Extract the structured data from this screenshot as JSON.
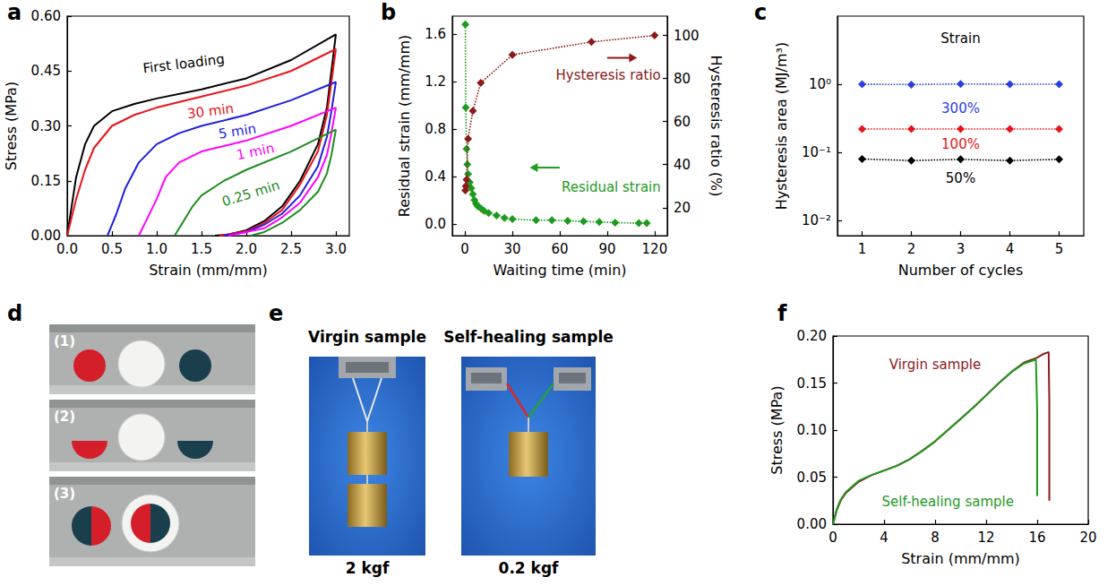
{
  "chart_data": [
    {
      "panel": "a",
      "type": "line",
      "xlabel": "Strain (mm/mm)",
      "ylabel": "Stress (MPa)",
      "xlim": [
        0,
        3.15
      ],
      "xticks": [
        {
          "value": 0,
          "label": "0.0"
        },
        0.5,
        {
          "value": 1,
          "label": "1.0"
        },
        1.5,
        {
          "value": 2,
          "label": "2.0"
        },
        2.5,
        {
          "value": 3,
          "label": "3.0"
        }
      ],
      "ylim": [
        0,
        0.6
      ],
      "yticks": [
        {
          "value": 0,
          "label": "0.00"
        },
        0.15,
        {
          "value": 0.3,
          "label": "0.30"
        },
        0.45,
        {
          "value": 0.6,
          "label": "0.60"
        }
      ],
      "grid": false,
      "series": [
        {
          "name": "First loading",
          "color": "#000000",
          "x": [
            0,
            0.05,
            0.1,
            0.2,
            0.3,
            0.5,
            0.75,
            1.0,
            1.5,
            2.0,
            2.5,
            3.0,
            2.95,
            2.9,
            2.8,
            2.6,
            2.4,
            2.2,
            2.0,
            1.8,
            1.65
          ],
          "values": [
            0,
            0.08,
            0.16,
            0.25,
            0.3,
            0.34,
            0.36,
            0.375,
            0.4,
            0.43,
            0.48,
            0.55,
            0.45,
            0.35,
            0.25,
            0.15,
            0.08,
            0.04,
            0.015,
            0.003,
            0
          ]
        },
        {
          "name": "30 min",
          "color": "#e8141b",
          "x": [
            0,
            0.1,
            0.2,
            0.3,
            0.5,
            0.75,
            1.0,
            1.5,
            2.0,
            2.5,
            3.0,
            2.95,
            2.9,
            2.8,
            2.6,
            2.4,
            2.2,
            2.0,
            1.7
          ],
          "values": [
            0,
            0.1,
            0.18,
            0.24,
            0.3,
            0.33,
            0.35,
            0.38,
            0.41,
            0.45,
            0.51,
            0.42,
            0.33,
            0.23,
            0.14,
            0.07,
            0.035,
            0.012,
            0
          ]
        },
        {
          "name": "5 min",
          "color": "#1f1fe0",
          "x": [
            0.45,
            0.55,
            0.65,
            0.8,
            1.0,
            1.25,
            1.5,
            2.0,
            2.5,
            3.0,
            2.95,
            2.9,
            2.8,
            2.6,
            2.4,
            2.2,
            2.0,
            1.75
          ],
          "values": [
            0,
            0.06,
            0.13,
            0.2,
            0.25,
            0.28,
            0.3,
            0.33,
            0.37,
            0.42,
            0.34,
            0.27,
            0.19,
            0.11,
            0.06,
            0.03,
            0.01,
            0
          ]
        },
        {
          "name": "1 min",
          "color": "#ff00ff",
          "x": [
            0.8,
            0.9,
            1.0,
            1.1,
            1.25,
            1.5,
            2.0,
            2.5,
            3.0,
            2.95,
            2.9,
            2.8,
            2.6,
            2.4,
            2.2,
            1.8
          ],
          "values": [
            0,
            0.05,
            0.1,
            0.16,
            0.2,
            0.23,
            0.26,
            0.3,
            0.35,
            0.28,
            0.22,
            0.16,
            0.09,
            0.05,
            0.02,
            0
          ]
        },
        {
          "name": "0.25 min",
          "color": "#1e8c1e",
          "x": [
            1.2,
            1.3,
            1.4,
            1.5,
            1.75,
            2.0,
            2.5,
            3.0,
            2.95,
            2.9,
            2.8,
            2.6,
            2.4,
            2.2,
            2.05
          ],
          "values": [
            0,
            0.04,
            0.08,
            0.11,
            0.15,
            0.18,
            0.23,
            0.29,
            0.22,
            0.17,
            0.12,
            0.07,
            0.035,
            0.01,
            0
          ]
        }
      ]
    },
    {
      "panel": "b",
      "type": "line",
      "xlabel": "Waiting time (min)",
      "ylabel": "Residual strain (mm/mm)",
      "y2label": "Hysteresis ratio (%)",
      "xlim": [
        -8,
        128
      ],
      "xticks": [
        0,
        30,
        60,
        90,
        120
      ],
      "ylim": [
        -0.1,
        1.75
      ],
      "yticks": [
        {
          "value": 0,
          "label": "0.0"
        },
        0.4,
        0.8,
        1.2,
        1.6
      ],
      "y2lim": [
        7,
        109
      ],
      "y2ticks": [
        20,
        40,
        60,
        80,
        100
      ],
      "grid": false,
      "marker": "diamond",
      "line_style": "dotted",
      "series": [
        {
          "name": "Residual strain",
          "color": "#1e9a1e",
          "x": [
            0.25,
            0.5,
            1,
            1.5,
            2,
            3,
            4,
            5,
            6,
            7,
            8,
            10,
            12,
            15,
            20,
            25,
            30,
            45,
            55,
            65,
            75,
            85,
            95,
            110,
            115
          ],
          "values": [
            1.68,
            0.98,
            0.63,
            0.5,
            0.42,
            0.35,
            0.3,
            0.25,
            0.2,
            0.17,
            0.15,
            0.13,
            0.11,
            0.09,
            0.07,
            0.05,
            0.04,
            0.03,
            0.03,
            0.025,
            0.02,
            0.015,
            0.01,
            0.005,
            0.005
          ]
        },
        {
          "name": "Hysteresis ratio",
          "color": "#8b1a1a",
          "axis": "y2",
          "x": [
            0.25,
            0.5,
            1,
            2,
            5,
            10,
            30,
            80,
            120
          ],
          "values": [
            28,
            30,
            33,
            52,
            65,
            78,
            91,
            97,
            100
          ]
        }
      ]
    },
    {
      "panel": "c",
      "type": "line",
      "xlabel": "Number of cycles",
      "ylabel": "Hysteresis area (MJ/m³)",
      "log": "y",
      "xlim": [
        0.5,
        5.5
      ],
      "xticks": [
        1,
        2,
        3,
        4,
        5
      ],
      "ylim": [
        0.006,
        10
      ],
      "yticks": [
        {
          "value": 0.01,
          "label": "10⁻²"
        },
        {
          "value": 0.1,
          "label": "10⁻¹"
        },
        {
          "value": 1,
          "label": "10⁰"
        }
      ],
      "grid": false,
      "marker": "diamond",
      "line_style": "dotted",
      "annotations": [
        "Strain"
      ],
      "x": [
        1,
        2,
        3,
        4,
        5
      ],
      "series": [
        {
          "name": "300%",
          "color": "#2b3fe0",
          "values": [
            1.0,
            0.99,
            1.01,
            1.0,
            1.0
          ]
        },
        {
          "name": "100%",
          "color": "#e8141b",
          "values": [
            0.22,
            0.22,
            0.22,
            0.22,
            0.22
          ]
        },
        {
          "name": "50%",
          "color": "#000000",
          "values": [
            0.08,
            0.076,
            0.079,
            0.076,
            0.079
          ]
        }
      ]
    },
    {
      "panel": "f",
      "type": "line",
      "xlabel": "Strain (mm/mm)",
      "ylabel": "Stress (MPa)",
      "xlim": [
        0,
        20
      ],
      "xticks": [
        0,
        4,
        8,
        12,
        16,
        20
      ],
      "ylim": [
        0,
        0.2
      ],
      "yticks": [
        {
          "value": 0,
          "label": "0.00"
        },
        0.05,
        {
          "value": 0.1,
          "label": "0.10"
        },
        0.15,
        {
          "value": 0.2,
          "label": "0.20"
        }
      ],
      "grid": false,
      "series": [
        {
          "name": "Virgin sample",
          "color": "#8b1a1a",
          "x": [
            0,
            0.3,
            0.6,
            1,
            2,
            3,
            4,
            5,
            6,
            7,
            8,
            9,
            10,
            11,
            12,
            13,
            14,
            15,
            16,
            16.5,
            16.9,
            16.95,
            16.95,
            16.95
          ],
          "values": [
            0,
            0.015,
            0.025,
            0.033,
            0.045,
            0.052,
            0.057,
            0.062,
            0.069,
            0.078,
            0.088,
            0.1,
            0.112,
            0.124,
            0.137,
            0.15,
            0.162,
            0.172,
            0.177,
            0.181,
            0.183,
            0.13,
            0.08,
            0.025
          ]
        },
        {
          "name": "Self-healing sample",
          "color": "#1e9a1e",
          "x": [
            0,
            0.3,
            0.6,
            1,
            2,
            3,
            4,
            5,
            6,
            7,
            8,
            9,
            10,
            11,
            12,
            13,
            14,
            15,
            15.9,
            16.0,
            16.0,
            16.0
          ],
          "values": [
            0,
            0.016,
            0.026,
            0.034,
            0.046,
            0.052,
            0.057,
            0.062,
            0.069,
            0.078,
            0.088,
            0.1,
            0.112,
            0.124,
            0.137,
            0.15,
            0.162,
            0.171,
            0.175,
            0.12,
            0.07,
            0.03
          ]
        }
      ]
    }
  ],
  "photos": [
    {
      "panel": "d",
      "frames": [
        "(1)",
        "(2)",
        "(3)"
      ]
    },
    {
      "panel": "e",
      "samples": [
        {
          "title": "Virgin sample",
          "load": "2 kgf"
        },
        {
          "title": "Self-healing sample",
          "load": "0.2 kgf"
        }
      ]
    }
  ]
}
